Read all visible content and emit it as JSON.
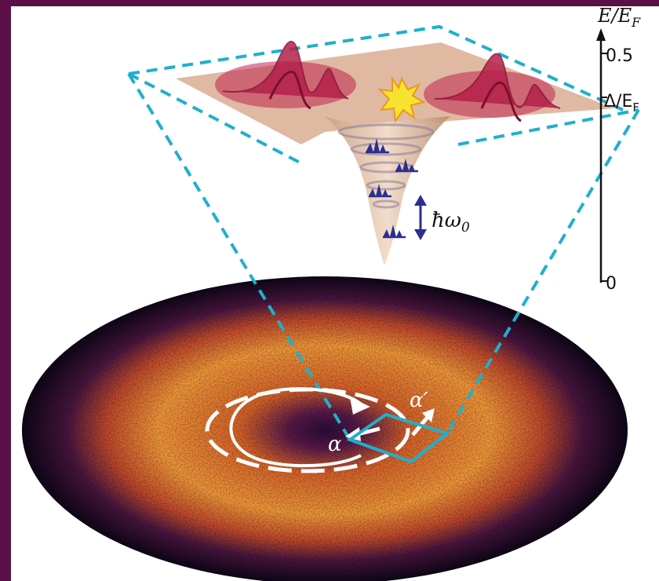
{
  "energy_axis": {
    "label": "E/E_F",
    "label_main": "E/E",
    "label_sub": "F",
    "ticks": [
      "0.5",
      "Δ/E_F",
      "0"
    ],
    "tick_05": "0.5",
    "tick_gap_main": "Δ/E",
    "tick_gap_sub": "F",
    "tick_zero": "0"
  },
  "labels": {
    "phonon_main": "ħω",
    "phonon_sub": "0",
    "alpha": "α",
    "alpha_prime": "α′"
  },
  "colors": {
    "frame": "#1fb0cc",
    "plane": "#d9a98f",
    "wavepacket": "#c0254e",
    "spark": "#f7e22e",
    "phonon": "#2b2f8f",
    "cloud_hot": "#f39a3a",
    "cloud_dark": "#1a0a2c",
    "background_outer": "#5a1046"
  },
  "icons": {
    "spark": "star-burst-icon",
    "phonon_arrow": "double-arrow-icon",
    "circulation": "circular-arrow-icon"
  }
}
